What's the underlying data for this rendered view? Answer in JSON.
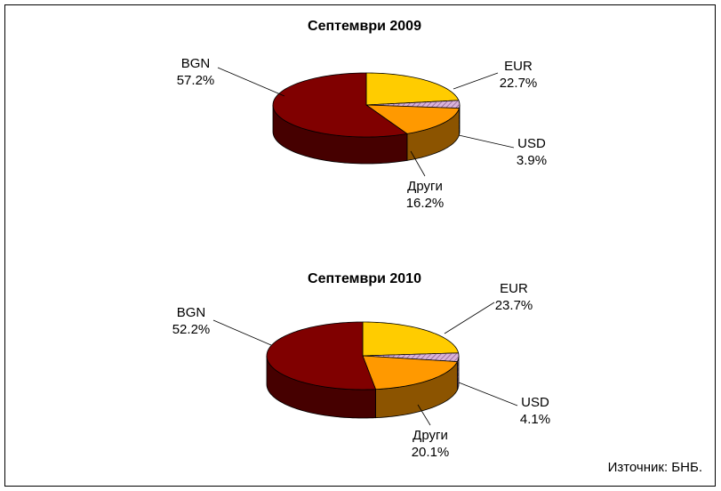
{
  "chart_data": [
    {
      "type": "pie",
      "title": "Септември 2009",
      "categories": [
        "EUR",
        "USD",
        "Други",
        "BGN"
      ],
      "values": [
        22.7,
        3.9,
        16.2,
        57.2
      ],
      "value_labels": [
        "22.7%",
        "3.9%",
        "16.2%",
        "57.2%"
      ],
      "colors": [
        "#ffcc00",
        "#d9b3d9",
        "#ff9900",
        "#800000"
      ]
    },
    {
      "type": "pie",
      "title": "Септември 2010",
      "categories": [
        "EUR",
        "USD",
        "Други",
        "BGN"
      ],
      "values": [
        23.7,
        4.1,
        20.1,
        52.2
      ],
      "value_labels": [
        "23.7%",
        "4.1%",
        "20.1%",
        "52.2%"
      ],
      "colors": [
        "#ffcc00",
        "#d9b3d9",
        "#ff9900",
        "#800000"
      ]
    }
  ],
  "source": "Източник: БНБ."
}
